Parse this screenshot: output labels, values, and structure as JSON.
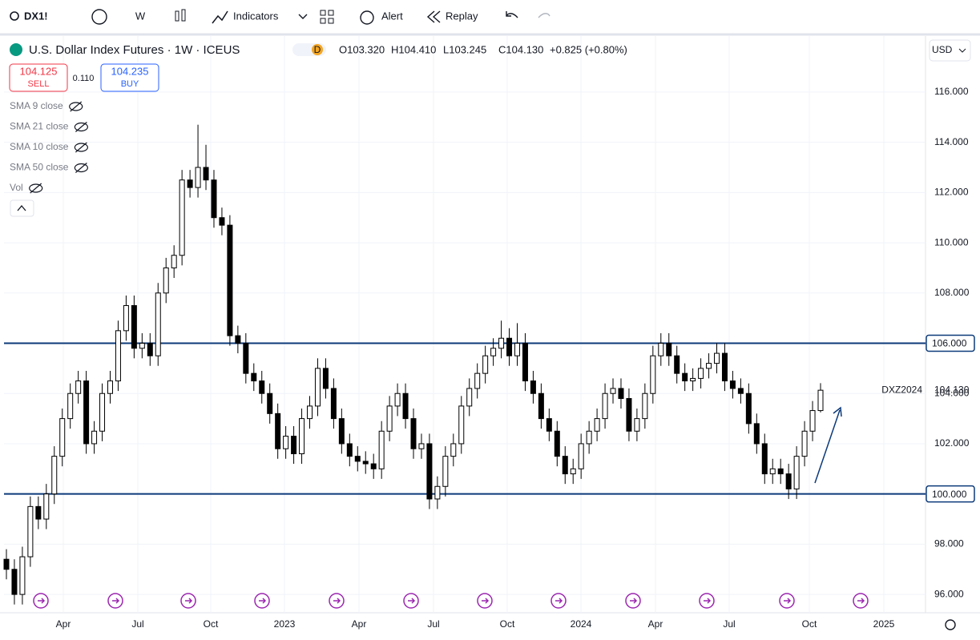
{
  "toolbar": {
    "symbol": "DX1!",
    "interval": "W",
    "indicators": "Indicators",
    "alert": "Alert",
    "replay": "Replay"
  },
  "legend": {
    "title": "U.S. Dollar Index Futures · 1W · ICEUS",
    "badge": "D",
    "o": "O103.320",
    "h": "H104.410",
    "l": "L103.245",
    "c": "C104.130",
    "change": "+0.825 (+0.80%)",
    "sell_price": "104.125",
    "sell": "SELL",
    "spread": "0.110",
    "buy_price": "104.235",
    "buy": "BUY",
    "studies": [
      "SMA 9 close",
      "SMA 21 close",
      "SMA 10 close",
      "SMA 50 close",
      "Vol"
    ]
  },
  "currency": "USD",
  "chart_data": {
    "type": "candlestick",
    "open": [
      97.4,
      97,
      96,
      97.5,
      99.5,
      99,
      100,
      101.5,
      103,
      104,
      104.5,
      102,
      102.5,
      104,
      104.5,
      106.5,
      107.5,
      105.8,
      106,
      105.5,
      108,
      109,
      109.5,
      112.5,
      112.2,
      113,
      112.5,
      111,
      110.7,
      106.3,
      106,
      104.8,
      104.5,
      104,
      103.2,
      101.8,
      102.3,
      101.6,
      103,
      103.5,
      105,
      104.2,
      103,
      102,
      101.5,
      101.3,
      101.2,
      101,
      102.5,
      103.5,
      104,
      103,
      101.8,
      102,
      99.8,
      100.3,
      101.5,
      102,
      103.5,
      104.2,
      104.8,
      105.5,
      105.8,
      106.2,
      105.5,
      106,
      104.5,
      104,
      103,
      102.5,
      101.5,
      100.8,
      101,
      102,
      102.5,
      103,
      104,
      104.2,
      103.8,
      102.5,
      103,
      104,
      105.5,
      106,
      105.5,
      104.8,
      104.5,
      104.6,
      105,
      105.2,
      105.6,
      104.5,
      104.2,
      104,
      102.8,
      102,
      100.8,
      101,
      100.8,
      100.2,
      101.5,
      102.5,
      103.32
    ],
    "high": [
      97.8,
      97.4,
      97.9,
      99.9,
      99.9,
      100.4,
      101.9,
      103.4,
      104.4,
      104.9,
      104.9,
      102.9,
      104.4,
      104.9,
      106.9,
      107.9,
      107.9,
      106.4,
      106.4,
      108.4,
      109.4,
      109.9,
      112.9,
      112.9,
      114.7,
      113.9,
      112.9,
      111.4,
      111.1,
      106.7,
      106.4,
      105.2,
      104.9,
      104.4,
      103.6,
      102.7,
      102.7,
      103.4,
      103.9,
      105.4,
      105.4,
      104.6,
      103.4,
      102.4,
      101.9,
      101.7,
      101.6,
      102.9,
      103.9,
      104.4,
      104.4,
      103.4,
      102.4,
      102.4,
      100.7,
      101.9,
      102.4,
      103.9,
      104.6,
      105.2,
      105.9,
      106.2,
      106.9,
      106.6,
      106.8,
      106.4,
      104.9,
      104.4,
      103.4,
      102.9,
      101.9,
      101.4,
      102.4,
      102.9,
      103.4,
      104.4,
      104.6,
      104.6,
      104.2,
      103.4,
      104.4,
      105.9,
      106.4,
      106.4,
      105.9,
      105.2,
      105,
      105.4,
      105.6,
      106,
      106,
      104.9,
      104.6,
      104.4,
      103.2,
      102.4,
      101.4,
      101.4,
      101.2,
      101.9,
      102.9,
      103.7,
      104.41
    ],
    "low": [
      96.6,
      95.6,
      95.6,
      97.1,
      98.6,
      98.6,
      99.6,
      101.1,
      102.6,
      103.6,
      101.6,
      101.6,
      102.1,
      103.6,
      104.1,
      106.1,
      105.4,
      105.4,
      105.1,
      105.1,
      107.6,
      108.6,
      109.1,
      111.8,
      111.8,
      112.1,
      110.6,
      110.3,
      105.9,
      105.6,
      104.4,
      104.1,
      103.6,
      102.8,
      101.4,
      101.4,
      101.2,
      101.2,
      102.6,
      103.1,
      103.8,
      102.6,
      101.6,
      101.1,
      100.9,
      100.8,
      100.6,
      100.6,
      102.1,
      103.1,
      102.6,
      101.4,
      101.4,
      99.4,
      99.4,
      99.9,
      101.1,
      101.6,
      103.1,
      103.8,
      104.4,
      105.1,
      105.4,
      105.1,
      105.1,
      104.1,
      103.6,
      102.6,
      102.1,
      101.1,
      100.4,
      100.4,
      100.6,
      101.6,
      102.1,
      102.6,
      103.6,
      103.4,
      102.1,
      102.1,
      102.6,
      103.6,
      105.1,
      105.1,
      104.4,
      104.1,
      104.1,
      104.2,
      104.6,
      104.8,
      104.1,
      103.8,
      103.6,
      102.4,
      101.6,
      100.4,
      100.4,
      100.4,
      99.8,
      99.8,
      101.1,
      102.1,
      103.245
    ],
    "close": [
      97,
      96,
      97.5,
      99.5,
      99,
      100,
      101.5,
      103,
      104,
      104.5,
      102,
      102.5,
      104,
      104.5,
      106.5,
      107.5,
      105.8,
      106,
      105.5,
      108,
      109,
      109.5,
      112.5,
      112.2,
      113,
      112.5,
      111,
      110.7,
      106.3,
      106,
      104.8,
      104.5,
      104,
      103.2,
      101.8,
      102.3,
      101.6,
      103,
      103.5,
      105,
      104.2,
      103,
      102,
      101.5,
      101.3,
      101.2,
      101,
      102.5,
      103.5,
      104,
      103,
      101.8,
      102,
      99.8,
      100.3,
      101.5,
      102,
      103.5,
      104.2,
      104.8,
      105.5,
      105.8,
      106.2,
      105.5,
      106,
      104.5,
      104,
      103,
      102.5,
      101.5,
      100.8,
      101,
      102,
      102.5,
      103,
      104,
      104.2,
      103.8,
      102.5,
      103,
      104,
      105.5,
      106,
      105.5,
      104.8,
      104.5,
      104.6,
      105,
      105.2,
      105.6,
      104.5,
      104.2,
      104,
      102.8,
      102,
      100.8,
      101,
      100.8,
      100.2,
      101.5,
      102.5,
      103.32,
      104.13
    ],
    "ylim": [
      95.27,
      118.23
    ],
    "yticks": [
      {
        "value": 96,
        "label": "96.000"
      },
      {
        "value": 98,
        "label": "98.000"
      },
      {
        "value": 100,
        "label": "100.000"
      },
      {
        "value": 102,
        "label": "102.000"
      },
      {
        "value": 104,
        "label": "104.000"
      },
      {
        "value": 106,
        "label": "106.000"
      },
      {
        "value": 108,
        "label": "108.000"
      },
      {
        "value": 110,
        "label": "110.000"
      },
      {
        "value": 112,
        "label": "112.000"
      },
      {
        "value": 114,
        "label": "114.000"
      },
      {
        "value": 116,
        "label": "116.000"
      }
    ],
    "xlabels": [
      "Apr",
      "Jul",
      "Oct",
      "2023",
      "Apr",
      "Jul",
      "Oct",
      "2024",
      "Apr",
      "Jul",
      "Oct",
      "2025"
    ],
    "hlines": [
      {
        "value": 106,
        "label": "106.000"
      },
      {
        "value": 100,
        "label": "100.000"
      }
    ],
    "last": {
      "value": 104.13,
      "label": "104.130",
      "contract": "DXZ2024"
    },
    "grid": true
  }
}
